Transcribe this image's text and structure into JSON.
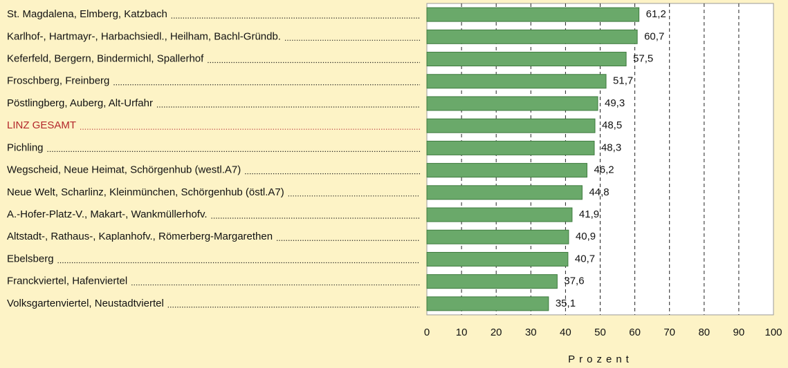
{
  "chart_data": {
    "type": "barh",
    "categories": [
      "St. Magdalena, Elmberg, Katzbach",
      "Karlhof-, Hartmayr-, Harbachsiedl., Heilham, Bachl-Gründb.",
      "Keferfeld, Bergern, Bindermichl, Spallerhof",
      "Froschberg, Freinberg",
      "Pöstlingberg, Auberg, Alt-Urfahr",
      "LINZ GESAMT",
      "Pichling",
      "Wegscheid, Neue Heimat, Schörgenhub (westl.A7)",
      "Neue Welt, Scharlinz, Kleinmünchen, Schörgenhub (östl.A7)",
      "A.-Hofer-Platz-V., Makart-, Wankmüllerhofv.",
      "Altstadt-, Rathaus-, Kaplanhofv., Römerberg-Margarethen",
      "Ebelsberg",
      "Franckviertel, Hafenviertel",
      "Volksgartenviertel, Neustadtviertel"
    ],
    "values": [
      61.2,
      60.7,
      57.5,
      51.7,
      49.3,
      48.5,
      48.3,
      46.2,
      44.8,
      41.9,
      40.9,
      40.7,
      37.6,
      35.1
    ],
    "value_labels": [
      "61,2",
      "60,7",
      "57,5",
      "51,7",
      "49,3",
      "48,5",
      "48,3",
      "46,2",
      "44,8",
      "41,9",
      "40,9",
      "40,7",
      "37,6",
      "35,1"
    ],
    "color": "#6aa96a",
    "highlight_index": 5,
    "highlight_color": "#b3262a",
    "xlabel": "Prozent",
    "xlim": [
      0,
      100
    ],
    "xticks": [
      0,
      10,
      20,
      30,
      40,
      50,
      60,
      70,
      80,
      90,
      100
    ],
    "grid": true
  }
}
